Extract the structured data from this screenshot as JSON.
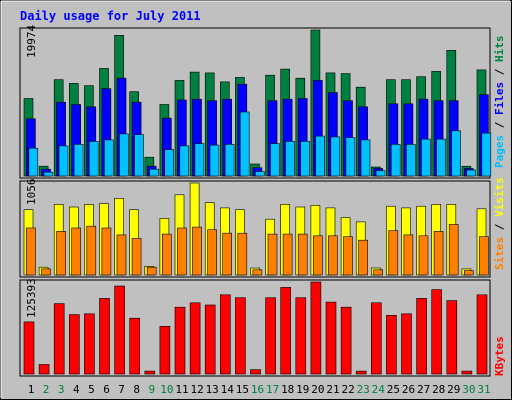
{
  "chart_data": [
    {
      "type": "bar",
      "title": "Daily usage for July 2011",
      "ymax_label": "19974",
      "right_labels": [
        {
          "text": "Pages",
          "color": "#00c0ff"
        },
        {
          "text": " / ",
          "color": "#000000"
        },
        {
          "text": "Files",
          "color": "#0000ff"
        },
        {
          "text": " / ",
          "color": "#000000"
        },
        {
          "text": "Hits",
          "color": "#008040"
        }
      ],
      "x": [
        "1",
        "2",
        "3",
        "4",
        "5",
        "6",
        "7",
        "8",
        "9",
        "10",
        "11",
        "12",
        "13",
        "14",
        "15",
        "16",
        "17",
        "18",
        "19",
        "20",
        "21",
        "22",
        "23",
        "24",
        "25",
        "26",
        "27",
        "28",
        "29",
        "30",
        "31"
      ],
      "weekend_days": [
        "2",
        "3",
        "9",
        "10",
        "16",
        "17",
        "23",
        "24",
        "30",
        "31"
      ],
      "series": [
        {
          "name": "Hits",
          "color": "#008040",
          "values": [
            10300,
            1300,
            12800,
            12300,
            12000,
            14300,
            18700,
            11200,
            2500,
            9500,
            12700,
            13800,
            13700,
            12500,
            13100,
            1600,
            13400,
            14200,
            13000,
            19400,
            13700,
            13600,
            11800,
            1200,
            12800,
            12800,
            13200,
            13900,
            16700,
            1300,
            14100
          ]
        },
        {
          "name": "Files",
          "color": "#0000ff",
          "values": [
            7600,
            900,
            9800,
            9500,
            9200,
            11600,
            13000,
            9800,
            1300,
            7700,
            10100,
            10200,
            10000,
            10200,
            12200,
            1100,
            10000,
            10200,
            10300,
            12700,
            11100,
            10000,
            9200,
            1000,
            9600,
            9600,
            10200,
            10000,
            10000,
            1000,
            10800
          ]
        },
        {
          "name": "Pages",
          "color": "#00c0ff",
          "values": [
            3700,
            500,
            4000,
            4200,
            4600,
            4800,
            5600,
            5500,
            900,
            3500,
            4000,
            4300,
            4100,
            4200,
            8500,
            600,
            4300,
            4600,
            4600,
            5300,
            5200,
            5100,
            4800,
            700,
            4200,
            4200,
            4900,
            4900,
            6000,
            800,
            5700
          ]
        }
      ]
    },
    {
      "type": "bar",
      "ymax_label": "1056",
      "right_labels": [
        {
          "text": "Sites",
          "color": "#ff8000"
        },
        {
          "text": " / ",
          "color": "#000000"
        },
        {
          "text": "Visits",
          "color": "#ffff00"
        }
      ],
      "series": [
        {
          "name": "Visits",
          "color": "#ffff00",
          "values": [
            750,
            90,
            810,
            780,
            810,
            820,
            880,
            750,
            100,
            650,
            920,
            1056,
            830,
            770,
            750,
            80,
            640,
            810,
            780,
            800,
            770,
            660,
            610,
            80,
            790,
            770,
            790,
            810,
            810,
            70,
            760
          ]
        },
        {
          "name": "Sites",
          "color": "#ff8000",
          "values": [
            540,
            70,
            500,
            540,
            560,
            540,
            460,
            420,
            90,
            470,
            540,
            550,
            520,
            480,
            480,
            60,
            470,
            470,
            470,
            450,
            450,
            440,
            400,
            60,
            510,
            460,
            450,
            500,
            580,
            50,
            440
          ]
        }
      ]
    },
    {
      "type": "bar",
      "ymax_label": "125393",
      "right_labels": [
        {
          "text": "KBytes",
          "color": "#ff0000"
        }
      ],
      "series": [
        {
          "name": "KBytes",
          "color": "#ff0000",
          "values": [
            71000,
            13000,
            96000,
            81000,
            82000,
            103000,
            120000,
            76000,
            4000,
            65000,
            91000,
            97000,
            94000,
            108000,
            104000,
            6000,
            104000,
            118000,
            104000,
            125393,
            98000,
            91000,
            4000,
            97000,
            80000,
            82000,
            103000,
            115000,
            100000,
            4000,
            108000
          ]
        }
      ]
    }
  ]
}
